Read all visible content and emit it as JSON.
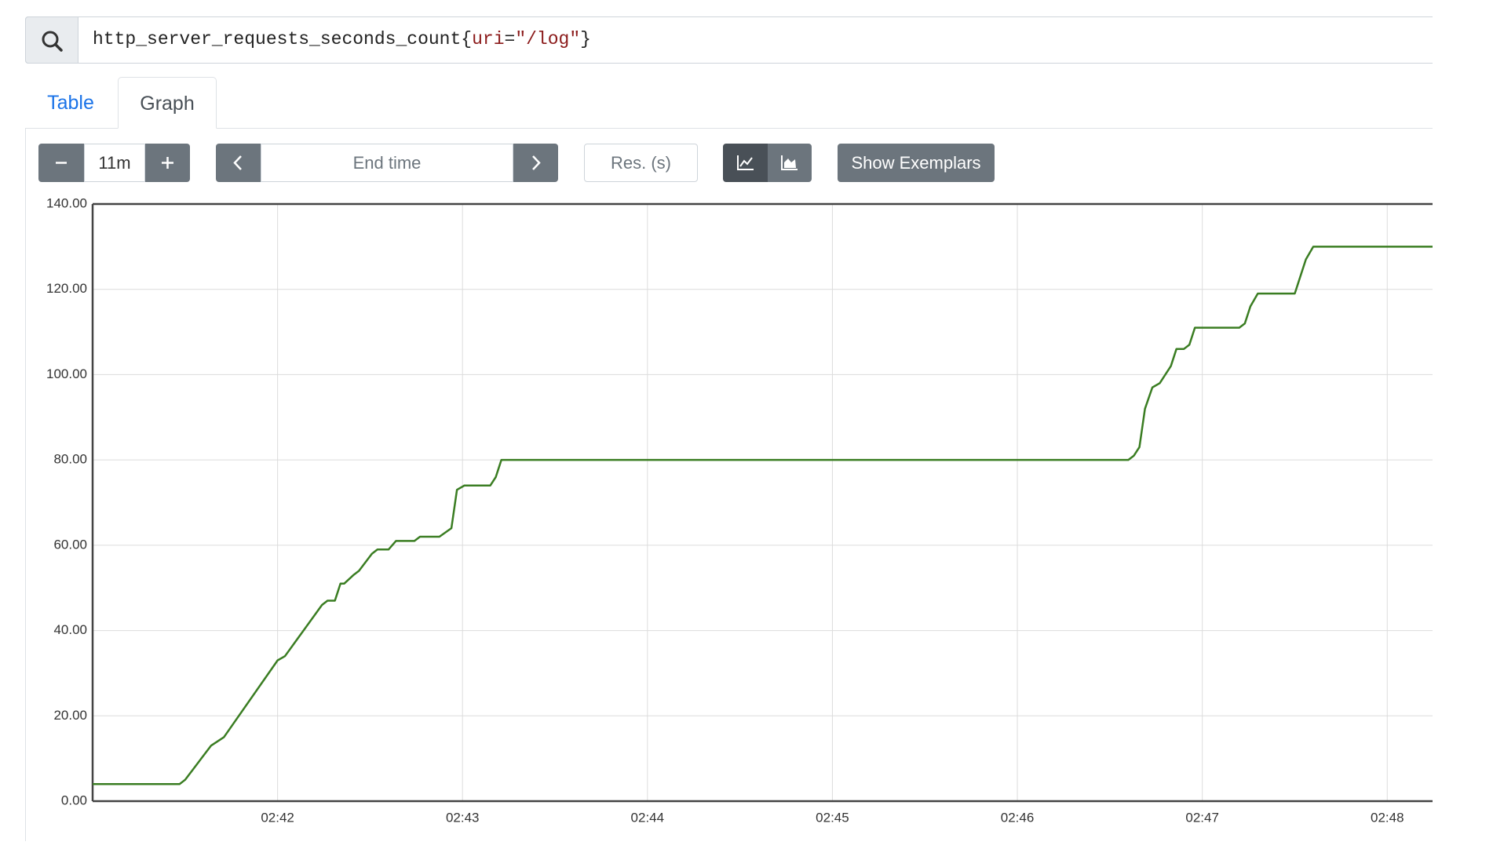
{
  "query": {
    "parts": [
      "http_server_requests_seconds_count{",
      "uri",
      "=",
      "\"/log\"",
      "}"
    ]
  },
  "tabs": [
    "Table",
    "Graph"
  ],
  "toolbar": {
    "range": "11m",
    "end_time": "End time",
    "resolution": "Res. (s)",
    "exemplars": "Show Exemplars"
  },
  "chart_data": {
    "type": "line",
    "x": [
      41.0,
      41.47,
      41.5,
      41.64,
      41.71,
      42.0,
      42.04,
      42.24,
      42.27,
      42.31,
      42.34,
      42.36,
      42.41,
      42.44,
      42.51,
      42.54,
      42.6,
      42.64,
      42.74,
      42.77,
      42.875,
      42.94,
      42.97,
      43.01,
      43.15,
      43.18,
      43.21,
      46.6,
      46.63,
      46.66,
      46.69,
      46.73,
      46.77,
      46.83,
      46.86,
      46.9,
      46.93,
      46.96,
      47.2,
      47.23,
      47.26,
      47.3,
      47.5,
      47.56,
      47.6,
      48.245
    ],
    "series": [
      {
        "color": "#3a7d22",
        "values": [
          4,
          4,
          5,
          13,
          15,
          33,
          34,
          46,
          47,
          47,
          51,
          51,
          53,
          54,
          58,
          59,
          59,
          61,
          61,
          62,
          62,
          64,
          73,
          74,
          74,
          76,
          80,
          80,
          81,
          83,
          92,
          97,
          98,
          102,
          106,
          106,
          107,
          111,
          111,
          112,
          116,
          119,
          119,
          127,
          130,
          130
        ]
      }
    ],
    "xlim": [
      41.0,
      48.245
    ],
    "xticks": [
      {
        "value": 42,
        "label": "02:42"
      },
      {
        "value": 43,
        "label": "02:43"
      },
      {
        "value": 44,
        "label": "02:44"
      },
      {
        "value": 45,
        "label": "02:45"
      },
      {
        "value": 46,
        "label": "02:46"
      },
      {
        "value": 47,
        "label": "02:47"
      },
      {
        "value": 48,
        "label": "02:48"
      }
    ],
    "ylim": [
      0,
      140
    ],
    "yticks": [
      {
        "value": 0,
        "label": "0.00"
      },
      {
        "value": 20,
        "label": "20.00"
      },
      {
        "value": 40,
        "label": "40.00"
      },
      {
        "value": 60,
        "label": "60.00"
      },
      {
        "value": 80,
        "label": "80.00"
      },
      {
        "value": 100,
        "label": "100.00"
      },
      {
        "value": 120,
        "label": "120.00"
      },
      {
        "value": 140,
        "label": "140.00"
      }
    ],
    "grid": true
  }
}
